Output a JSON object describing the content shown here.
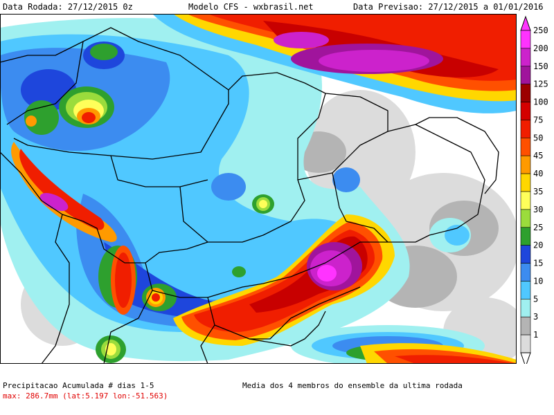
{
  "header": {
    "run_date": "Data Rodada: 27/12/2015 0z",
    "model": "Modelo CFS - wxbrasil.net",
    "forecast_range": "Data Previsao: 27/12/2015 a 01/01/2016"
  },
  "footer": {
    "title": "Precipitacao Acumulada # dias 1-5",
    "max_info": "max: 286.7mm (lat:5.197 lon:-51.563)",
    "note": "Media dos 4 membros do ensemble da ultima rodada"
  },
  "legend": {
    "levels": [
      "250",
      "200",
      "150",
      "125",
      "100",
      "75",
      "50",
      "45",
      "40",
      "35",
      "30",
      "25",
      "20",
      "15",
      "10",
      "5",
      "3",
      "1"
    ],
    "colors": [
      "#ff33ff",
      "#cc22cc",
      "#a0149c",
      "#9c0000",
      "#d40000",
      "#f01e00",
      "#ff5000",
      "#ff9a00",
      "#ffd700",
      "#ffff5a",
      "#9bdc3c",
      "#2ea02e",
      "#1e46dc",
      "#3c8cf0",
      "#50c8ff",
      "#a0f0f0",
      "#b4b4b4",
      "#dcdcdc"
    ]
  },
  "map_layers": {
    "background": "#ffffff",
    "borders": "#000000",
    "colors": {
      "gray_light": "#dcdcdc",
      "gray": "#b4b4b4",
      "cyan_light": "#a0f0f0",
      "cyan": "#50c8ff",
      "blue_light": "#3c8cf0",
      "blue": "#1e46dc",
      "green": "#2ea02e",
      "lime": "#9bdc3c",
      "yellow": "#ffff5a",
      "gold": "#ffd700",
      "orange": "#ff9a00",
      "orange_red": "#ff5000",
      "red": "#f01e00",
      "dark_red": "#c80000",
      "magenta_dark": "#a0149c",
      "magenta": "#cc22cc",
      "pink": "#ff33ff"
    }
  }
}
